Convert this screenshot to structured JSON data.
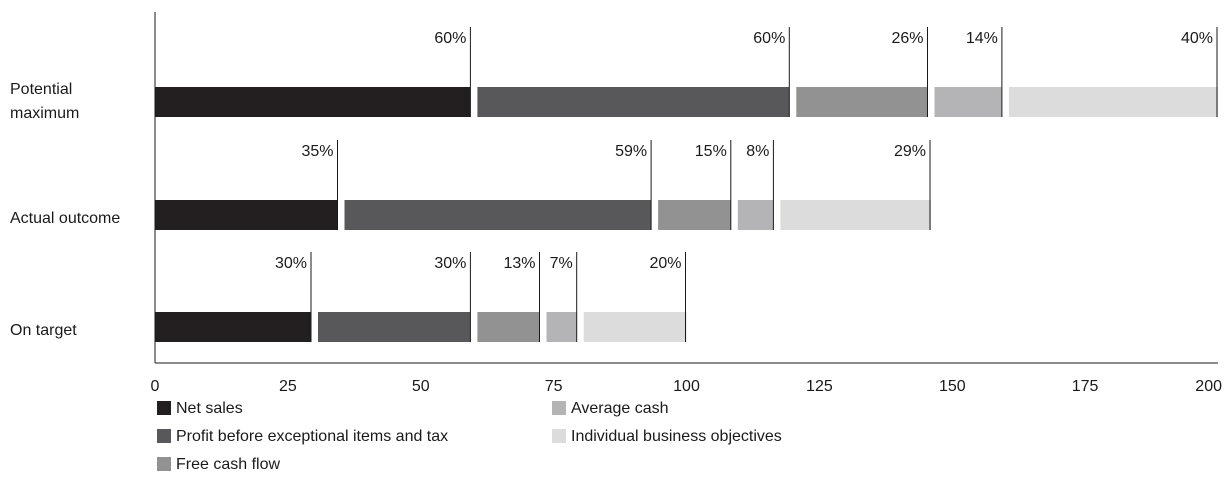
{
  "chart_data": {
    "type": "bar",
    "orientation": "horizontal",
    "stacked": true,
    "categories": [
      "Potential maximum",
      "Actual outcome",
      "On target"
    ],
    "category_labels": [
      [
        "Potential",
        "maximum"
      ],
      [
        "Actual outcome"
      ],
      [
        "On target"
      ]
    ],
    "series": [
      {
        "name": "Net sales",
        "color": "#231f20",
        "values": [
          60,
          35,
          30
        ],
        "labels": [
          "60%",
          "35%",
          "30%"
        ]
      },
      {
        "name": "Profit before exceptional items and tax",
        "color": "#58585a",
        "values": [
          60,
          59,
          30
        ],
        "labels": [
          "60%",
          "59%",
          "30%"
        ]
      },
      {
        "name": "Free cash flow",
        "color": "#929292",
        "values": [
          26,
          15,
          13
        ],
        "labels": [
          "26%",
          "15%",
          "13%"
        ]
      },
      {
        "name": "Average cash",
        "color": "#b4b4b6",
        "values": [
          14,
          8,
          7
        ],
        "labels": [
          "14%",
          "8%",
          "7%"
        ]
      },
      {
        "name": "Individual business objectives",
        "color": "#dcdcdd",
        "values": [
          40,
          29,
          20
        ],
        "labels": [
          "40%",
          "29%",
          "20%"
        ]
      }
    ],
    "xlim": [
      0,
      200
    ],
    "xticks": [
      0,
      25,
      50,
      75,
      100,
      125,
      150,
      175,
      200
    ],
    "xtick_labels": [
      "0",
      "25",
      "50",
      "75",
      "100",
      "125",
      "150",
      "175",
      "200"
    ],
    "grid": false,
    "legend_placement": "bottom-left"
  }
}
